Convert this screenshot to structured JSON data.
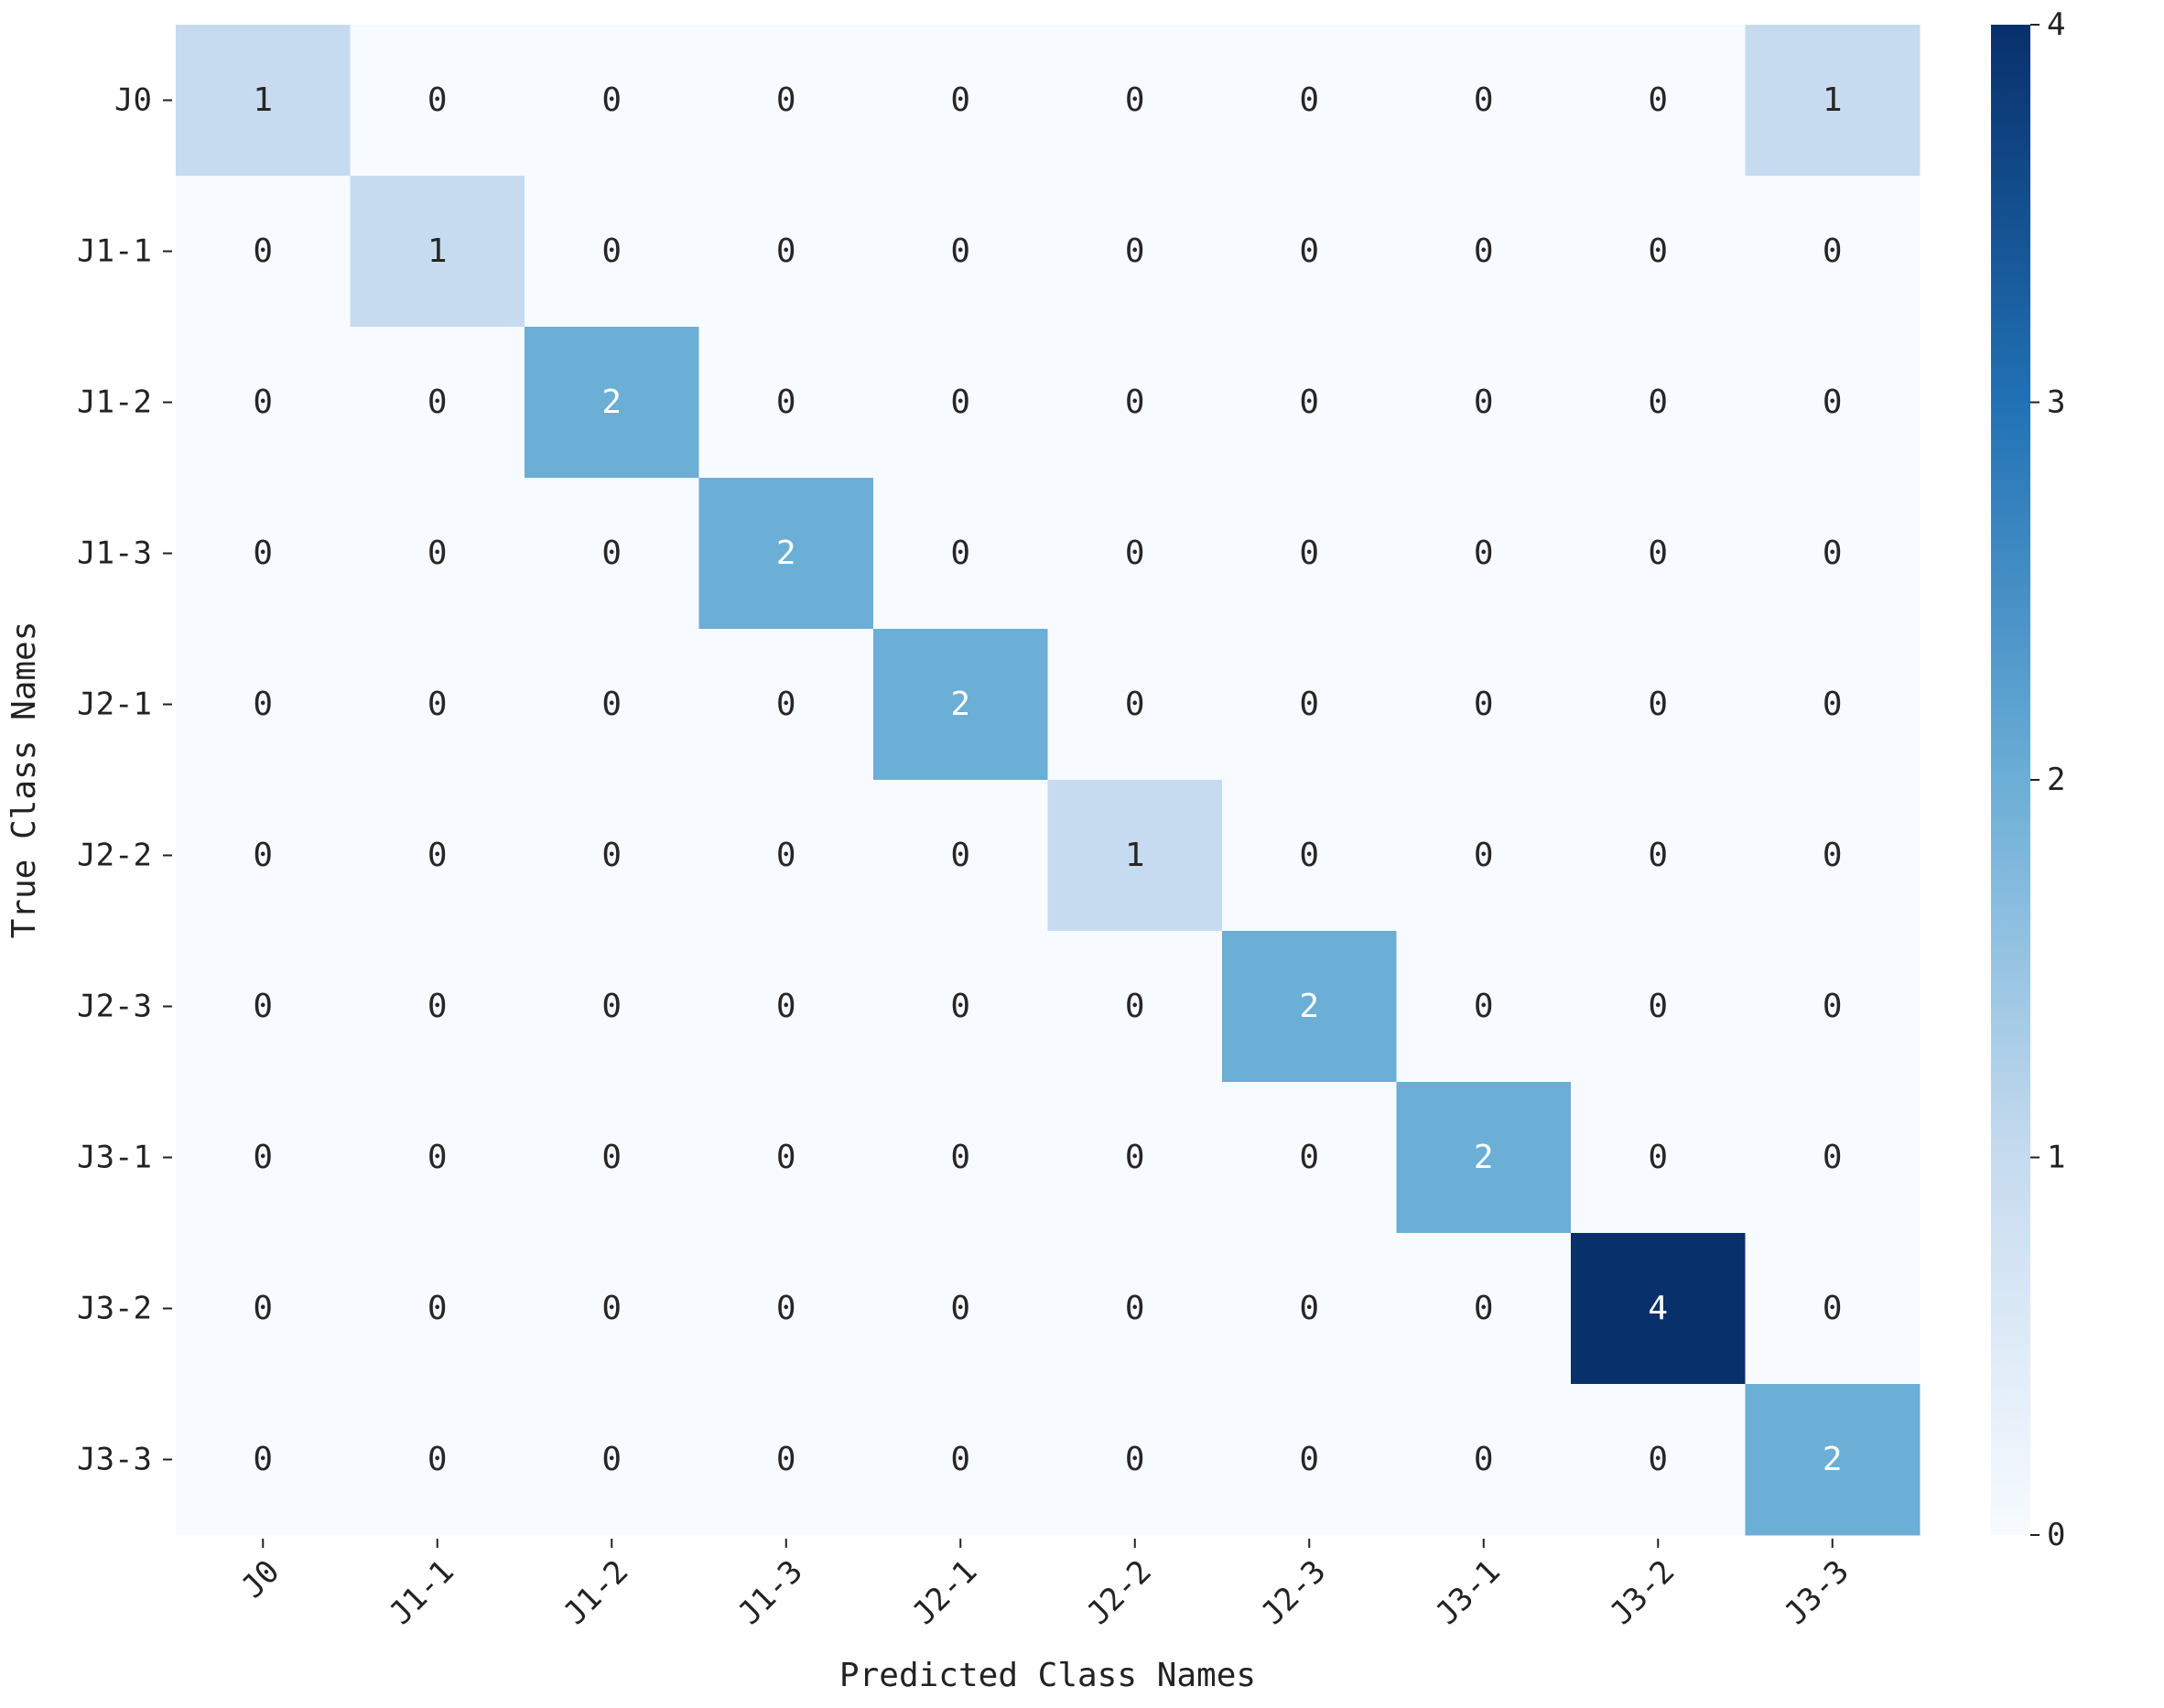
{
  "chart_data": {
    "type": "heatmap",
    "title": "",
    "xlabel": "Predicted Class Names",
    "ylabel": "True Class Names",
    "x_categories": [
      "J0",
      "J1-1",
      "J1-2",
      "J1-3",
      "J2-1",
      "J2-2",
      "J2-3",
      "J3-1",
      "J3-2",
      "J3-3"
    ],
    "y_categories": [
      "J0",
      "J1-1",
      "J1-2",
      "J1-3",
      "J2-1",
      "J2-2",
      "J2-3",
      "J3-1",
      "J3-2",
      "J3-3"
    ],
    "values": [
      [
        1,
        0,
        0,
        0,
        0,
        0,
        0,
        0,
        0,
        1
      ],
      [
        0,
        1,
        0,
        0,
        0,
        0,
        0,
        0,
        0,
        0
      ],
      [
        0,
        0,
        2,
        0,
        0,
        0,
        0,
        0,
        0,
        0
      ],
      [
        0,
        0,
        0,
        2,
        0,
        0,
        0,
        0,
        0,
        0
      ],
      [
        0,
        0,
        0,
        0,
        2,
        0,
        0,
        0,
        0,
        0
      ],
      [
        0,
        0,
        0,
        0,
        0,
        1,
        0,
        0,
        0,
        0
      ],
      [
        0,
        0,
        0,
        0,
        0,
        0,
        2,
        0,
        0,
        0
      ],
      [
        0,
        0,
        0,
        0,
        0,
        0,
        0,
        2,
        0,
        0
      ],
      [
        0,
        0,
        0,
        0,
        0,
        0,
        0,
        0,
        4,
        0
      ],
      [
        0,
        0,
        0,
        0,
        0,
        0,
        0,
        0,
        0,
        2
      ]
    ],
    "colorbar": {
      "min": 0,
      "max": 4,
      "ticks": [
        0,
        1,
        2,
        3,
        4
      ],
      "colormap": "Blues",
      "colors": [
        "#f7fbff",
        "#c6dbef",
        "#6baed6",
        "#2171b5",
        "#08306b"
      ]
    }
  }
}
